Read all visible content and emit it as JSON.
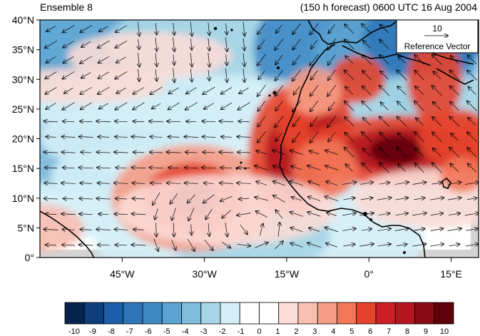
{
  "titles": {
    "left": "Ensemble 8",
    "right": "(150 h forecast) 0600 UTC 16 Aug 2004"
  },
  "map": {
    "lat_labels": [
      "40°N",
      "35°N",
      "30°N",
      "25°N",
      "20°N",
      "15°N",
      "10°N",
      "5°N",
      "0°"
    ],
    "lat_values": [
      40,
      35,
      30,
      25,
      20,
      15,
      10,
      5,
      0
    ],
    "lon_labels": [
      "45°W",
      "30°W",
      "15°W",
      "0°",
      "15°E"
    ],
    "lon_values": [
      -45,
      -30,
      -15,
      0,
      15
    ],
    "lon_range": [
      -60,
      20
    ],
    "lat_range": [
      0,
      40
    ],
    "reference_vector": {
      "magnitude": "10",
      "label": "Reference Vector"
    },
    "colors": {
      "land_gray": "#d4d4d4",
      "coast": "#000000"
    }
  },
  "colorbar": {
    "labels": [
      "-10",
      "-9",
      "-8",
      "-7",
      "-6",
      "-5",
      "-4",
      "-3",
      "-2",
      "-1",
      "0",
      "1",
      "2",
      "3",
      "4",
      "5",
      "6",
      "7",
      "8",
      "9",
      "10"
    ],
    "colors": [
      "#06234f",
      "#0d3e7a",
      "#1c5ea7",
      "#2f76b8",
      "#3d89c4",
      "#5ba3d1",
      "#7fbbdb",
      "#a6d6e5",
      "#d3eef7",
      "#ffffff",
      "#ffffff",
      "#fbdcd6",
      "#f8bfb0",
      "#f59c86",
      "#f27657",
      "#e5442c",
      "#cc1f25",
      "#b4151e",
      "#8b0a14",
      "#600008"
    ]
  }
}
